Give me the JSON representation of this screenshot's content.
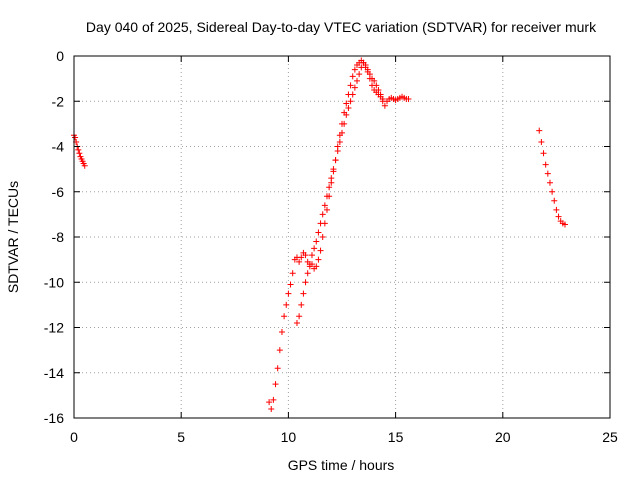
{
  "chart_data": {
    "type": "scatter",
    "title": "Day 040 of 2025, Sidereal Day-to-day VTEC variation (SDTVAR) for receiver murk",
    "xlabel": "GPS time / hours",
    "ylabel": "SDTVAR / TECUs",
    "xlim": [
      0,
      25
    ],
    "ylim": [
      -16,
      0
    ],
    "xticks": [
      0,
      5,
      10,
      15,
      20,
      25
    ],
    "yticks": [
      0,
      -2,
      -4,
      -6,
      -8,
      -10,
      -12,
      -14,
      -16
    ],
    "xtick_labels": [
      "0",
      "5",
      "10",
      "15",
      "20",
      "25"
    ],
    "ytick_labels": [
      "0",
      "-2",
      "-4",
      "-6",
      "-8",
      "-10",
      "-12",
      "-14",
      "-16"
    ],
    "grid": true,
    "marker": "+",
    "color": "#ff0000",
    "series": [
      {
        "x": [
          0.0,
          0.05,
          0.1,
          0.15,
          0.2,
          0.25,
          0.3,
          0.35,
          0.4,
          0.45,
          0.5
        ],
        "values": [
          -3.5,
          -3.6,
          -3.8,
          -4.0,
          -4.15,
          -4.3,
          -4.45,
          -4.55,
          -4.65,
          -4.75,
          -4.85
        ]
      },
      {
        "x": [
          9.1,
          9.2,
          9.3,
          9.4,
          9.5,
          9.6,
          9.7,
          9.8,
          9.9,
          10.0,
          10.1,
          10.2,
          10.3,
          10.4,
          10.5,
          10.6,
          10.7,
          10.8,
          10.9,
          11.0,
          11.1,
          11.2,
          11.3,
          11.4,
          11.5,
          11.6,
          11.7,
          11.8,
          11.9,
          12.0,
          12.1,
          12.2,
          12.3,
          12.4,
          12.5,
          12.6,
          12.7,
          12.8,
          12.9,
          13.0,
          13.1,
          13.2,
          13.3,
          13.4,
          13.5,
          13.6,
          13.7,
          13.8,
          13.9,
          14.0,
          14.1,
          14.2,
          14.3,
          14.4,
          14.5,
          14.6,
          14.7,
          14.8,
          14.9,
          15.0,
          15.1,
          15.2,
          15.3,
          15.4,
          15.5,
          15.6
        ],
        "values": [
          -15.3,
          -15.6,
          -15.2,
          -14.5,
          -13.8,
          -13.0,
          -12.2,
          -11.5,
          -11.0,
          -10.5,
          -10.1,
          -9.6,
          -9.0,
          -8.9,
          -9.1,
          -8.9,
          -8.7,
          -8.8,
          -9.1,
          -9.3,
          -9.2,
          -9.4,
          -9.3,
          -9.0,
          -8.6,
          -8.0,
          -7.4,
          -6.8,
          -6.2,
          -5.6,
          -5.1,
          -4.6,
          -4.0,
          -3.5,
          -3.0,
          -2.5,
          -2.1,
          -1.7,
          -1.3,
          -0.9,
          -0.6,
          -0.4,
          -0.3,
          -0.2,
          -0.3,
          -0.5,
          -0.7,
          -1.0,
          -1.3,
          -1.5,
          -1.6,
          -1.7,
          -1.8,
          -2.0,
          -2.2,
          -2.0,
          -1.9,
          -1.85,
          -1.9,
          -1.95,
          -1.9,
          -1.85,
          -1.8,
          -1.85,
          -1.9,
          -1.9
        ]
      },
      {
        "x": [
          10.4,
          10.5,
          10.6,
          10.7,
          10.8,
          10.9,
          11.0,
          11.1,
          11.2,
          11.3,
          11.4,
          11.5,
          11.6,
          11.7,
          11.8,
          11.9,
          12.0,
          12.1,
          12.2,
          12.3,
          12.4,
          12.5,
          12.6,
          12.7,
          12.8,
          12.9,
          13.0,
          13.1,
          13.2,
          13.3,
          13.4,
          13.5,
          13.6,
          13.7,
          13.8,
          13.9,
          14.0,
          14.1,
          14.2,
          14.3,
          14.4
        ],
        "values": [
          -11.8,
          -11.5,
          -11.0,
          -10.5,
          -10.0,
          -9.6,
          -9.2,
          -8.8,
          -8.5,
          -8.2,
          -7.8,
          -7.4,
          -7.0,
          -6.6,
          -6.2,
          -5.8,
          -5.4,
          -5.0,
          -4.6,
          -4.2,
          -3.8,
          -3.4,
          -3.0,
          -2.6,
          -2.3,
          -2.0,
          -1.7,
          -1.4,
          -1.1,
          -0.8,
          -0.5,
          -0.3,
          -0.4,
          -0.6,
          -0.8,
          -1.0,
          -1.1,
          -1.3,
          -1.5,
          -1.7,
          -1.9
        ]
      },
      {
        "x": [
          21.7,
          21.8,
          21.9,
          22.0,
          22.1,
          22.2,
          22.3,
          22.4,
          22.5,
          22.6,
          22.7,
          22.8,
          22.9
        ],
        "values": [
          -3.3,
          -3.8,
          -4.3,
          -4.8,
          -5.2,
          -5.6,
          -6.0,
          -6.4,
          -6.8,
          -7.1,
          -7.3,
          -7.4,
          -7.45
        ]
      }
    ]
  }
}
